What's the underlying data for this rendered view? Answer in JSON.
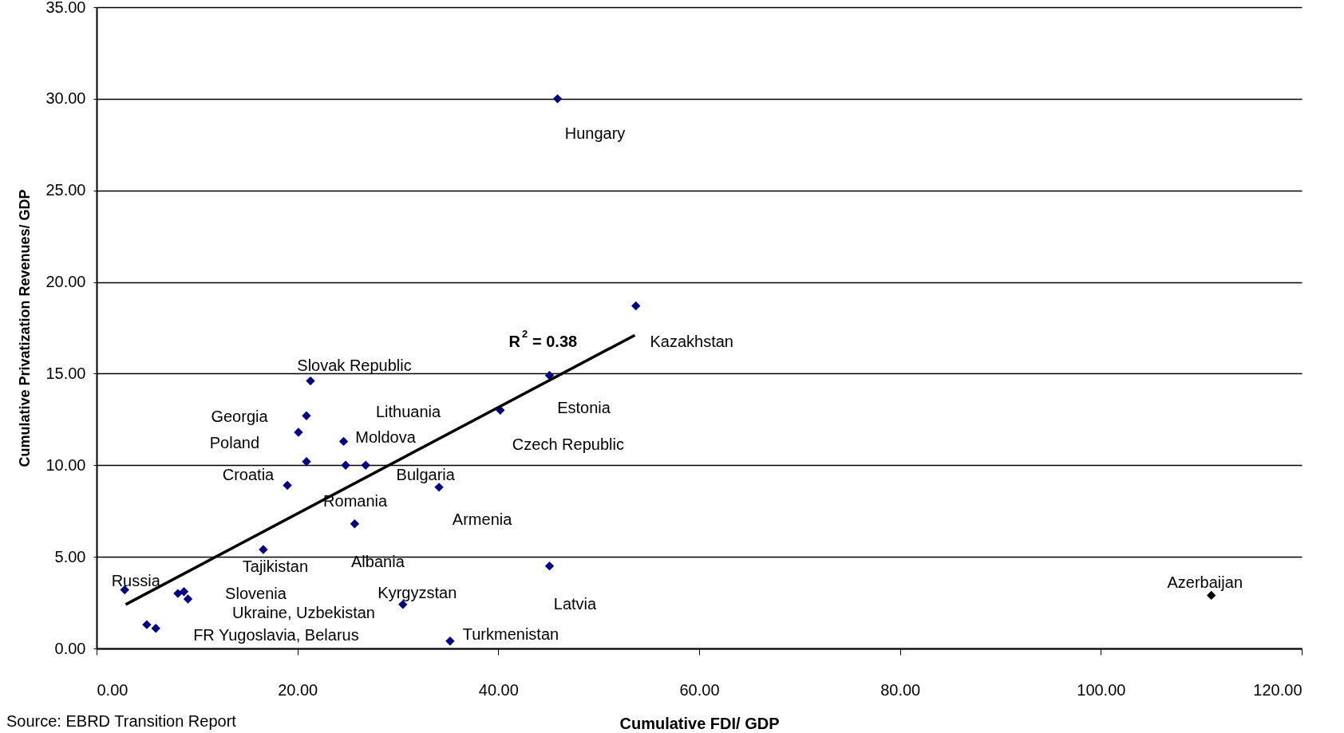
{
  "chart_data": {
    "type": "scatter",
    "xlabel": "Cumulative FDI/ GDP",
    "ylabel": "Cumulative Privatization Revenues/ GDP",
    "xlim": [
      0,
      120
    ],
    "xticks": [
      {
        "value": 0,
        "label": "0.00"
      },
      {
        "value": 20,
        "label": "20.00"
      },
      {
        "value": 40,
        "label": "40.00"
      },
      {
        "value": 60,
        "label": "60.00"
      },
      {
        "value": 80,
        "label": "80.00"
      },
      {
        "value": 100,
        "label": "100.00"
      },
      {
        "value": 120,
        "label": "120.00"
      }
    ],
    "ylim": [
      0,
      35
    ],
    "yticks": [
      {
        "value": 0,
        "label": "0.00"
      },
      {
        "value": 5,
        "label": "5.00"
      },
      {
        "value": 10,
        "label": "10.00"
      },
      {
        "value": 15,
        "label": "15.00"
      },
      {
        "value": 20,
        "label": "20.00"
      },
      {
        "value": 25,
        "label": "25.00"
      },
      {
        "value": 30,
        "label": "30.00"
      },
      {
        "value": 35,
        "label": "35.00"
      }
    ],
    "grid": "y",
    "marker": "diamond",
    "series": [
      {
        "color": "#000080",
        "x": [
          45.9,
          53.7,
          45.1,
          40.2,
          21.3,
          20.9,
          20.1,
          24.6,
          20.9,
          24.8,
          26.8,
          19.0,
          34.1,
          25.7,
          16.6,
          45.1,
          2.8,
          8.1,
          8.7,
          9.1,
          5.0,
          5.9,
          30.5,
          35.2
        ],
        "values": [
          30.0,
          18.7,
          14.9,
          13.0,
          14.6,
          12.7,
          11.8,
          11.3,
          10.2,
          10.0,
          10.0,
          8.9,
          8.8,
          6.8,
          5.4,
          4.5,
          3.2,
          3.0,
          3.1,
          2.7,
          1.3,
          1.1,
          2.4,
          0.4
        ]
      },
      {
        "color": "#000000",
        "x": [
          111.0
        ],
        "values": [
          2.9
        ]
      },
      {
        "type": "line",
        "marker": "none",
        "color": "#000000",
        "x": [
          2.9,
          53.6
        ],
        "values": [
          2.4,
          17.1
        ]
      }
    ],
    "annotations": [
      {
        "text": "Hungary",
        "x": 45.9,
        "y": 30.0
      },
      {
        "text": "Kazakhstan",
        "x": 53.7,
        "y": 18.7
      },
      {
        "text": "Estonia",
        "x": 45.1,
        "y": 14.9
      },
      {
        "text": "Czech Republic",
        "x": 40.2,
        "y": 13.0
      },
      {
        "text": "Slovak Republic",
        "x": 21.3,
        "y": 14.6
      },
      {
        "text": "Georgia",
        "x": 20.9,
        "y": 12.7
      },
      {
        "text": "Poland",
        "x": 20.1,
        "y": 11.8
      },
      {
        "text": "Lithuania",
        "x": 24.6,
        "y": 11.3
      },
      {
        "text": "Moldova",
        "x": 24.8,
        "y": 10.0
      },
      {
        "text": "Croatia",
        "x": 20.9,
        "y": 10.2
      },
      {
        "text": "Bulgaria",
        "x": 26.8,
        "y": 10.0
      },
      {
        "text": "Romania",
        "x": 19.0,
        "y": 8.9
      },
      {
        "text": "Armenia",
        "x": 34.1,
        "y": 8.8
      },
      {
        "text": "Albania",
        "x": 25.7,
        "y": 6.8
      },
      {
        "text": "Tajikistan",
        "x": 16.6,
        "y": 5.4
      },
      {
        "text": "Latvia",
        "x": 45.1,
        "y": 4.5
      },
      {
        "text": "Russia",
        "x": 2.8,
        "y": 3.2
      },
      {
        "text": "Slovenia",
        "x": 8.7,
        "y": 3.1
      },
      {
        "text": "Ukraine, Uzbekistan",
        "x": 9.1,
        "y": 2.7
      },
      {
        "text": "FR Yugoslavia, Belarus",
        "x": 5.0,
        "y": 1.3
      },
      {
        "text": "Kyrgyzstan",
        "x": 30.5,
        "y": 2.4
      },
      {
        "text": "Turkmenistan",
        "x": 35.2,
        "y": 0.4
      },
      {
        "text": "Azerbaijan",
        "x": 111.0,
        "y": 2.9
      },
      "R$^{2}$ = 0.38",
      "Source: EBRD Transition Report"
    ]
  }
}
